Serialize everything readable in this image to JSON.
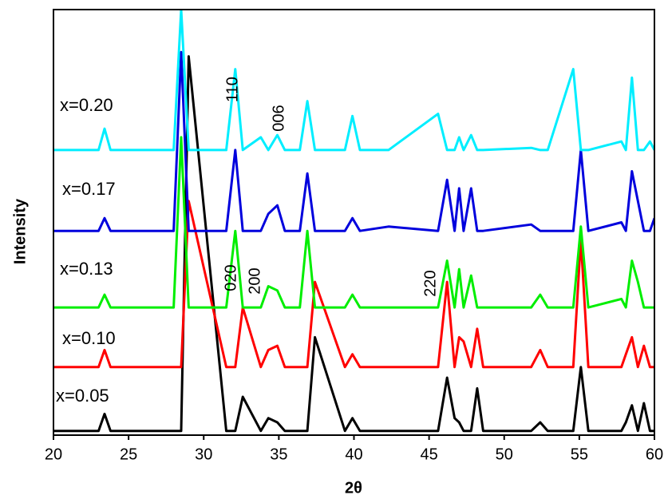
{
  "chart_data": {
    "type": "line",
    "xlabel": "2θ",
    "ylabel": "Intensity",
    "xlim": [
      20,
      60
    ],
    "xticks": [
      20,
      25,
      30,
      35,
      40,
      45,
      50,
      55,
      60
    ],
    "ylim": [
      0,
      100
    ],
    "x": [
      20,
      22,
      23.0,
      23.4,
      23.8,
      26,
      28.0,
      28.5,
      29.0,
      31.5,
      32.1,
      32.6,
      33.8,
      34.3,
      34.9,
      35.4,
      36.4,
      36.9,
      37.4,
      39.4,
      39.9,
      40.4,
      42.3,
      45.6,
      46.2,
      46.7,
      47.0,
      47.3,
      47.8,
      48.2,
      48.6,
      51.8,
      52.4,
      52.9,
      54.6,
      55.1,
      55.6,
      57.8,
      58.1,
      58.5,
      58.9,
      59.3,
      59.7,
      60
    ],
    "series": [
      {
        "name": "x=0.05",
        "color": "#000000",
        "values": [
          1,
          1,
          1,
          5,
          1,
          1,
          1,
          1,
          89,
          1,
          1,
          9,
          1,
          4,
          3,
          1,
          1,
          1,
          23,
          1,
          4,
          1,
          1,
          1,
          13.5,
          4,
          3,
          1,
          1,
          11,
          1,
          1,
          3,
          1,
          1,
          16,
          1,
          1,
          3,
          7,
          1,
          7.5,
          1,
          1
        ]
      },
      {
        "name": "x=0.10",
        "color": "#ff0000",
        "values": [
          16,
          16,
          16,
          20,
          16,
          16,
          16,
          16,
          55,
          16,
          16,
          30,
          16,
          20,
          21,
          16,
          16,
          16,
          36,
          16,
          19,
          16,
          16,
          16,
          36,
          16,
          23,
          22,
          16,
          25,
          16,
          16,
          20,
          16,
          16,
          46,
          16,
          16,
          19,
          23,
          16,
          21,
          16,
          16
        ]
      },
      {
        "name": "x=0.13",
        "color": "#00ee00",
        "values": [
          30,
          30,
          30,
          33,
          30,
          30,
          30,
          70,
          30,
          30,
          48,
          30,
          30,
          35,
          34,
          30,
          30,
          48,
          30,
          30,
          33,
          30,
          30,
          30,
          41,
          30,
          39,
          30,
          37.5,
          30,
          30,
          30,
          33,
          30,
          30,
          49,
          30,
          32,
          30,
          41,
          36,
          30,
          30,
          30
        ]
      },
      {
        "name": "x=0.17",
        "color": "#0000dd",
        "values": [
          48,
          48,
          48,
          51,
          48,
          48,
          48,
          90,
          48,
          48,
          67,
          48,
          48,
          52,
          54,
          48,
          48,
          61.5,
          48,
          48,
          51,
          48,
          49,
          48,
          60,
          48,
          58,
          48,
          58,
          48,
          48,
          49.5,
          48,
          48,
          48,
          67,
          48,
          50,
          48,
          62,
          55,
          48,
          48,
          51
        ]
      },
      {
        "name": "x=0.20",
        "color": "#00eeff",
        "values": [
          67,
          67,
          67,
          72,
          67,
          67,
          67,
          100,
          67,
          67,
          86,
          67,
          70,
          67,
          70.5,
          67,
          67,
          78.5,
          67,
          67,
          75,
          67,
          67,
          75.5,
          67,
          67,
          70,
          67,
          70.5,
          67,
          67,
          67.5,
          67,
          67,
          86,
          67,
          67,
          69,
          67,
          84,
          67,
          67,
          69,
          67
        ]
      }
    ],
    "annotations": [
      "110",
      "006",
      "020",
      "200",
      "220"
    ]
  }
}
